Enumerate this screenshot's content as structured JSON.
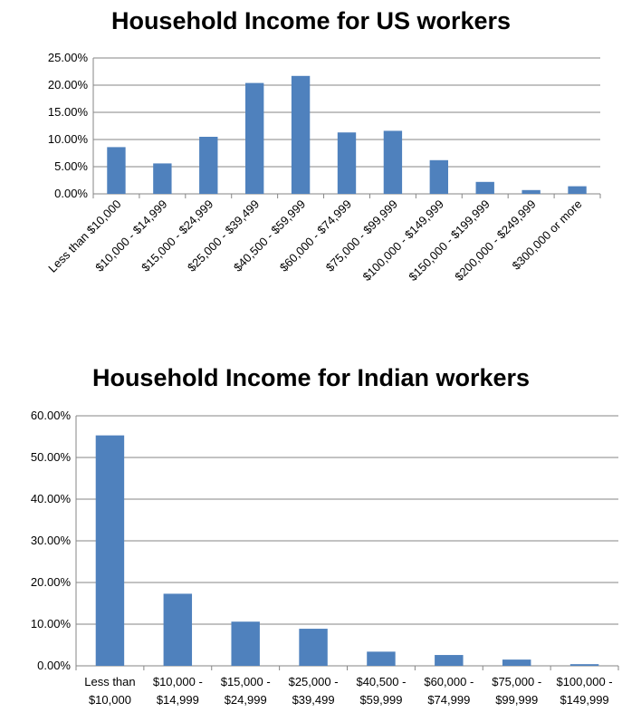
{
  "chart_data": [
    {
      "type": "bar",
      "title": "Household Income for US workers",
      "categories": [
        "Less than $10,000",
        "$10,000 - $14,999",
        "$15,000 - $24,999",
        "$25,000 - $39,499",
        "$40,500 - $59,999",
        "$60,000 - $74,999",
        "$75,000 - $99,999",
        "$100,000 - $149,999",
        "$150,000 - $199,999",
        "$200,000 - $249,999",
        "$300,000 or more"
      ],
      "values": [
        8.6,
        5.6,
        10.5,
        20.4,
        21.7,
        11.3,
        11.6,
        6.2,
        2.2,
        0.7,
        1.4
      ],
      "ylim": [
        0,
        25
      ],
      "yticks": [
        "0.00%",
        "5.00%",
        "10.00%",
        "15.00%",
        "20.00%",
        "25.00%"
      ],
      "grid": true,
      "bar_color": "#4F81BD"
    },
    {
      "type": "bar",
      "title": "Household Income for Indian workers",
      "categories": [
        "Less than $10,000",
        "$10,000 - $14,999",
        "$15,000 - $24,999",
        "$25,000 - $39,499",
        "$40,500 - $59,999",
        "$60,000 - $74,999",
        "$75,000 - $99,999",
        "$100,000 - $149,999"
      ],
      "category_lines": [
        [
          "Less than",
          "$10,000"
        ],
        [
          "$10,000 -",
          "$14,999"
        ],
        [
          "$15,000 -",
          "$24,999"
        ],
        [
          "$25,000 -",
          "$39,499"
        ],
        [
          "$40,500 -",
          "$59,999"
        ],
        [
          "$60,000 -",
          "$74,999"
        ],
        [
          "$75,000 -",
          "$99,999"
        ],
        [
          "$100,000 -",
          "$149,999"
        ]
      ],
      "values": [
        55.3,
        17.3,
        10.6,
        8.9,
        3.4,
        2.6,
        1.5,
        0.4
      ],
      "ylim": [
        0,
        60
      ],
      "yticks": [
        "0.00%",
        "10.00%",
        "20.00%",
        "30.00%",
        "40.00%",
        "50.00%",
        "60.00%"
      ],
      "grid": true,
      "bar_color": "#4F81BD"
    }
  ]
}
